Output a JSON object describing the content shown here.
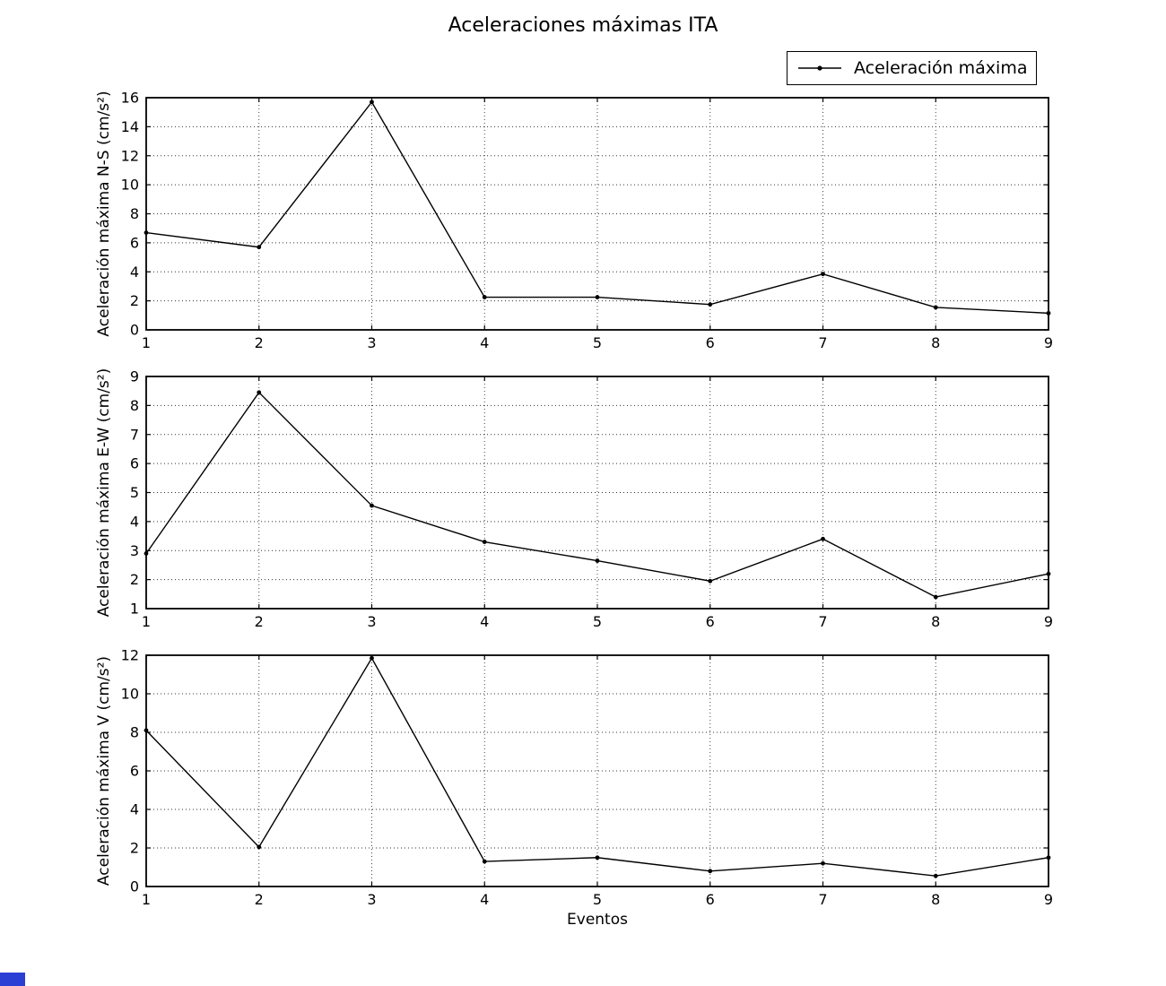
{
  "figure": {
    "title": "Aceleraciones máximas ITA",
    "xlabel": "Eventos",
    "background": "#ffffff",
    "line_color": "#000000",
    "grid_color": "#333333",
    "corner_marker_color": "#2b3fd4"
  },
  "legend": {
    "label": "Aceleración máxima",
    "position": "top-right"
  },
  "chart_data": [
    {
      "type": "line",
      "series_name": "Aceleración máxima",
      "x": [
        1,
        2,
        3,
        4,
        5,
        6,
        7,
        8,
        9
      ],
      "values": [
        6.7,
        5.7,
        15.7,
        2.25,
        2.25,
        1.75,
        3.85,
        1.55,
        1.15
      ],
      "title": "",
      "xlabel": "",
      "ylabel": "Aceleración máxima N-S (cm/s²)",
      "xlim": [
        1,
        9
      ],
      "ylim": [
        0,
        16
      ],
      "ytick_step": 2,
      "xticks": [
        1,
        2,
        3,
        4,
        5,
        6,
        7,
        8,
        9
      ],
      "grid": "dotted",
      "marker": "dot"
    },
    {
      "type": "line",
      "series_name": "Aceleración máxima",
      "x": [
        1,
        2,
        3,
        4,
        5,
        6,
        7,
        8,
        9
      ],
      "values": [
        2.9,
        8.45,
        4.55,
        3.3,
        2.65,
        1.95,
        3.4,
        1.4,
        2.2
      ],
      "title": "",
      "xlabel": "",
      "ylabel": "Aceleración máxima E-W (cm/s²)",
      "xlim": [
        1,
        9
      ],
      "ylim": [
        1,
        9
      ],
      "ytick_step": 1,
      "xticks": [
        1,
        2,
        3,
        4,
        5,
        6,
        7,
        8,
        9
      ],
      "grid": "dotted",
      "marker": "dot"
    },
    {
      "type": "line",
      "series_name": "Aceleración máxima",
      "x": [
        1,
        2,
        3,
        4,
        5,
        6,
        7,
        8,
        9
      ],
      "values": [
        8.1,
        2.05,
        11.85,
        1.3,
        1.5,
        0.8,
        1.2,
        0.55,
        1.5
      ],
      "title": "",
      "xlabel": "Eventos",
      "ylabel": "Aceleración máxima V (cm/s²)",
      "xlim": [
        1,
        9
      ],
      "ylim": [
        0,
        12
      ],
      "ytick_step": 2,
      "xticks": [
        1,
        2,
        3,
        4,
        5,
        6,
        7,
        8,
        9
      ],
      "grid": "dotted",
      "marker": "dot"
    }
  ]
}
